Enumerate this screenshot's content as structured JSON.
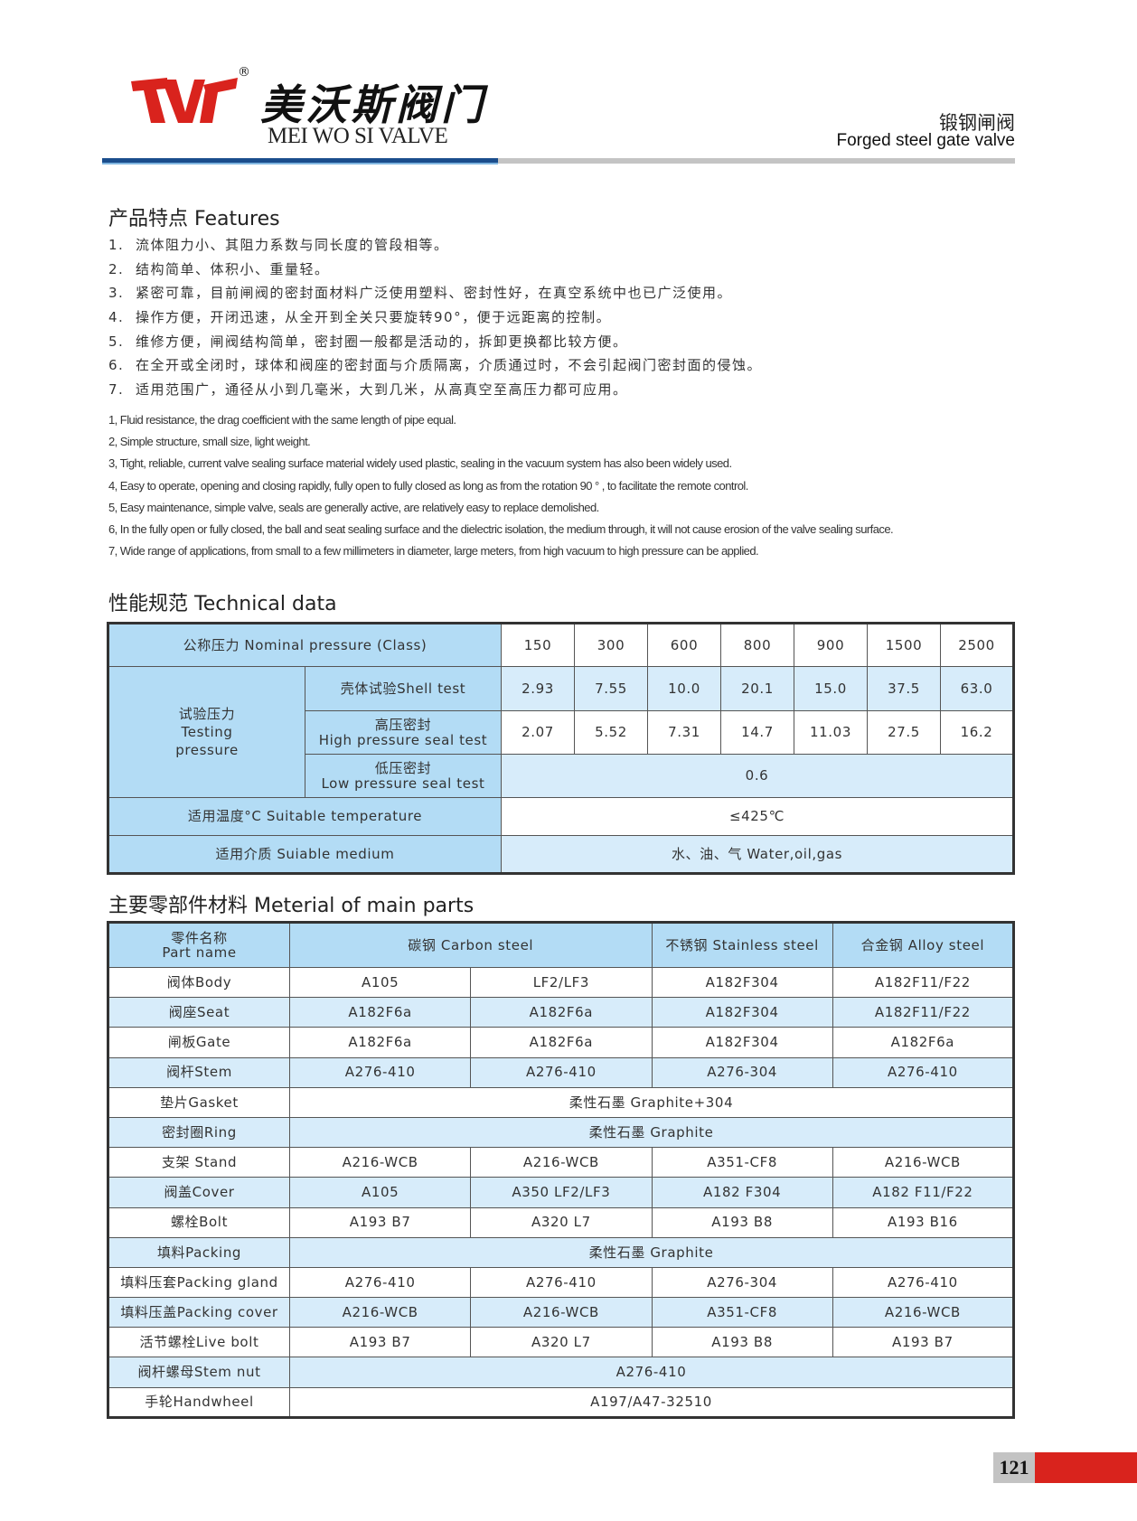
{
  "header": {
    "logo_text": "TVT",
    "logo_cn": "美沃斯阀门",
    "logo_en": "MEI WO SI VALVE",
    "registered": "®",
    "title_cn": "锻钢闸阀",
    "title_en": "Forged steel gate valve",
    "colors": {
      "brand_red": "#d9231d",
      "bar_blue": "#1a4d8c",
      "bar_gray": "#c4c4c4"
    }
  },
  "features": {
    "heading": "产品特点 Features",
    "cn": [
      "流体阻力小、其阻力系数与同长度的管段相等。",
      "结构简单、体积小、重量轻。",
      "紧密可靠，目前闸阀的密封面材料广泛使用塑料、密封性好，在真空系统中也已广泛使用。",
      "操作方便，开闭迅速，从全开到全关只要旋转90°，便于远距离的控制。",
      "维修方便，闸阀结构简单，密封圈一般都是活动的，拆卸更换都比较方便。",
      "在全开或全闭时，球体和阀座的密封面与介质隔离，介质通过时，不会引起阀门密封面的侵蚀。",
      "适用范围广，通径从小到几毫米，大到几米，从高真空至高压力都可应用。"
    ],
    "en": [
      "1, Fluid resistance, the drag coefficient with the same length of pipe equal.",
      "2, Simple structure, small size, light weight.",
      "3, Tight, reliable, current valve sealing surface material widely used plastic, sealing in the vacuum system has also been widely used.",
      "4, Easy to operate, opening and closing rapidly, fully open to fully closed as long as from the rotation 90 ° , to facilitate the remote control.",
      "5, Easy maintenance, simple valve, seals are generally active, are relatively easy to replace demolished.",
      "6, In the fully open or fully closed, the ball and seat sealing surface and the dielectric isolation, the medium through, it will not cause erosion of the valve sealing surface.",
      "7, Wide range of applications, from small to a few millimeters in diameter, large meters, from high vacuum to high pressure can be applied."
    ]
  },
  "tech": {
    "heading": "性能规范 Technical data",
    "nominal_label": "公称压力  Nominal pressure (Class)",
    "classes": [
      "150",
      "300",
      "600",
      "800",
      "900",
      "1500",
      "2500"
    ],
    "testing_label": [
      "试验压力",
      "Testing",
      "pressure"
    ],
    "shell_label": "壳体试验Shell test",
    "shell": [
      "2.93",
      "7.55",
      "10.0",
      "20.1",
      "15.0",
      "37.5",
      "63.0"
    ],
    "high_label": [
      "高压密封",
      "High pressure seal test"
    ],
    "high": [
      "2.07",
      "5.52",
      "7.31",
      "14.7",
      "11.03",
      "27.5",
      "16.2"
    ],
    "low_label": [
      "低压密封",
      "Low pressure seal test"
    ],
    "low": "0.6",
    "temp_label": "适用温度°C   Suitable temperature",
    "temp": "≤425℃",
    "medium_label": "适用介质   Suiable medium",
    "medium": "水、油、气  Water,oil,gas"
  },
  "materials": {
    "heading": "主要零部件材料  Meterial of main parts",
    "headers": {
      "part": [
        "零件名称",
        "Part name"
      ],
      "carbon": "碳钢 Carbon steel",
      "stainless": "不锈钢 Stainless steel",
      "alloy": "合金钢 Alloy steel"
    },
    "rows": [
      {
        "part": "阀体Body",
        "cells": [
          "A105",
          "LF2/LF3",
          "A182F304",
          "A182F11/F22"
        ]
      },
      {
        "part": "阀座Seat",
        "cells": [
          "A182F6a",
          "A182F6a",
          "A182F304",
          "A182F11/F22"
        ]
      },
      {
        "part": "闸板Gate",
        "cells": [
          "A182F6a",
          "A182F6a",
          "A182F304",
          "A182F6a"
        ]
      },
      {
        "part": "阀杆Stem",
        "cells": [
          "A276-410",
          "A276-410",
          "A276-304",
          "A276-410"
        ]
      },
      {
        "part": "垫片Gasket",
        "cells": [
          "柔性石墨 Graphite+304"
        ]
      },
      {
        "part": "密封圈Ring",
        "cells": [
          "柔性石墨 Graphite"
        ]
      },
      {
        "part": "支架 Stand",
        "cells": [
          "A216-WCB",
          "A216-WCB",
          "A351-CF8",
          "A216-WCB"
        ]
      },
      {
        "part": "阀盖Cover",
        "cells": [
          "A105",
          "A350 LF2/LF3",
          "A182 F304",
          "A182 F11/F22"
        ]
      },
      {
        "part": "螺栓Bolt",
        "cells": [
          "A193 B7",
          "A320 L7",
          "A193 B8",
          "A193 B16"
        ]
      },
      {
        "part": "填料Packing",
        "cells": [
          "柔性石墨 Graphite"
        ]
      },
      {
        "part": "填料压套Packing gland",
        "cells": [
          "A276-410",
          "A276-410",
          "A276-304",
          "A276-410"
        ]
      },
      {
        "part": "填料压盖Packing cover",
        "cells": [
          "A216-WCB",
          "A216-WCB",
          "A351-CF8",
          "A216-WCB"
        ]
      },
      {
        "part": "活节螺栓Live bolt",
        "cells": [
          "A193 B7",
          "A320 L7",
          "A193 B8",
          "A193 B7"
        ]
      },
      {
        "part": "阀杆螺母Stem nut",
        "cells": [
          "A276-410"
        ]
      },
      {
        "part": "手轮Handwheel",
        "cells": [
          "A197/A47-32510"
        ]
      }
    ]
  },
  "footer": {
    "page_number": "121"
  }
}
